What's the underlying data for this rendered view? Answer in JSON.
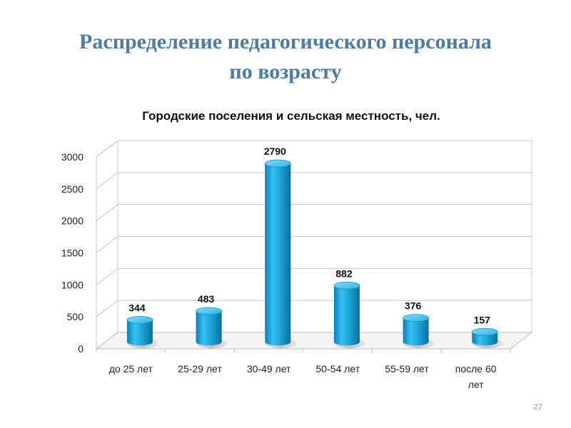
{
  "slide": {
    "title_line1": "Распределение педагогического персонала",
    "title_line2": "по возрасту",
    "page_number": "27"
  },
  "chart_data": {
    "type": "bar",
    "title": "Городские поселения и сельская местность, чел.",
    "categories": [
      "до 25 лет",
      "25-29 лет",
      "30-49 лет",
      "50-54 лет",
      "55-59 лет",
      "после 60 лет"
    ],
    "values": [
      344,
      483,
      2790,
      882,
      376,
      157
    ],
    "y_ticks": [
      0,
      500,
      1000,
      1500,
      2000,
      2500,
      3000
    ],
    "ylim": [
      0,
      3000
    ],
    "xlabel": "",
    "ylabel": "",
    "grid": true,
    "legend": "none",
    "data_labels": true,
    "style": "3d-cylinder",
    "bar_color": "#1da6df"
  }
}
